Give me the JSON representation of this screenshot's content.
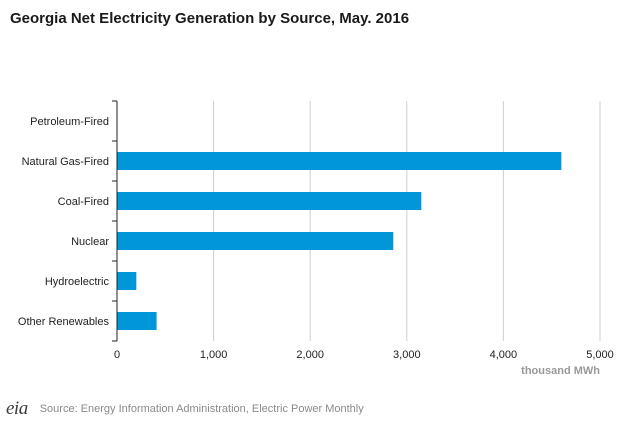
{
  "title": "Georgia Net Electricity Generation by Source, May. 2016",
  "source": "Source: Energy Information Administration, Electric Power Monthly",
  "logo_text": "eia",
  "colors": {
    "bar": "#0096d7",
    "axis": "#222222",
    "grid": "#cfcfcf",
    "tick_text": "#222222",
    "unit_text": "#999999"
  },
  "chart_data": {
    "type": "bar",
    "orientation": "horizontal",
    "categories": [
      "Petroleum-Fired",
      "Natural Gas-Fired",
      "Coal-Fired",
      "Nuclear",
      "Hydroelectric",
      "Other Renewables"
    ],
    "values": [
      0,
      4600,
      3150,
      2860,
      200,
      410
    ],
    "xlim": [
      0,
      5000
    ],
    "xticks": [
      0,
      1000,
      2000,
      3000,
      4000,
      5000
    ],
    "xtick_labels": [
      "0",
      "1,000",
      "2,000",
      "3,000",
      "4,000",
      "5,000"
    ],
    "xlabel": "thousand MWh",
    "ylabel": "",
    "grid": true
  }
}
